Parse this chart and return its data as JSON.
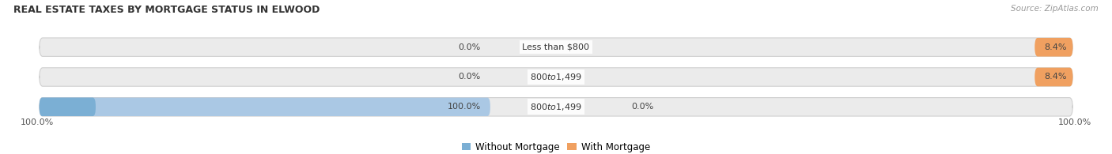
{
  "title": "REAL ESTATE TAXES BY MORTGAGE STATUS IN ELWOOD",
  "source": "Source: ZipAtlas.com",
  "categories": [
    "Less than $800",
    "$800 to $1,499",
    "$800 to $1,499"
  ],
  "without_mortgage": [
    0.0,
    0.0,
    100.0
  ],
  "with_mortgage": [
    8.4,
    8.4,
    0.0
  ],
  "bar_bg_color": "#ebebeb",
  "without_color": "#7bafd4",
  "with_color": "#f0a060",
  "without_color_light": "#aac8e4",
  "with_color_light": "#f5c898",
  "title_fontsize": 9,
  "label_fontsize": 8,
  "legend_fontsize": 8.5,
  "source_fontsize": 7.5,
  "bar_height": 0.62,
  "figsize": [
    14.06,
    1.95
  ],
  "dpi": 100,
  "left_label": "100.0%",
  "right_label": "100.0%"
}
